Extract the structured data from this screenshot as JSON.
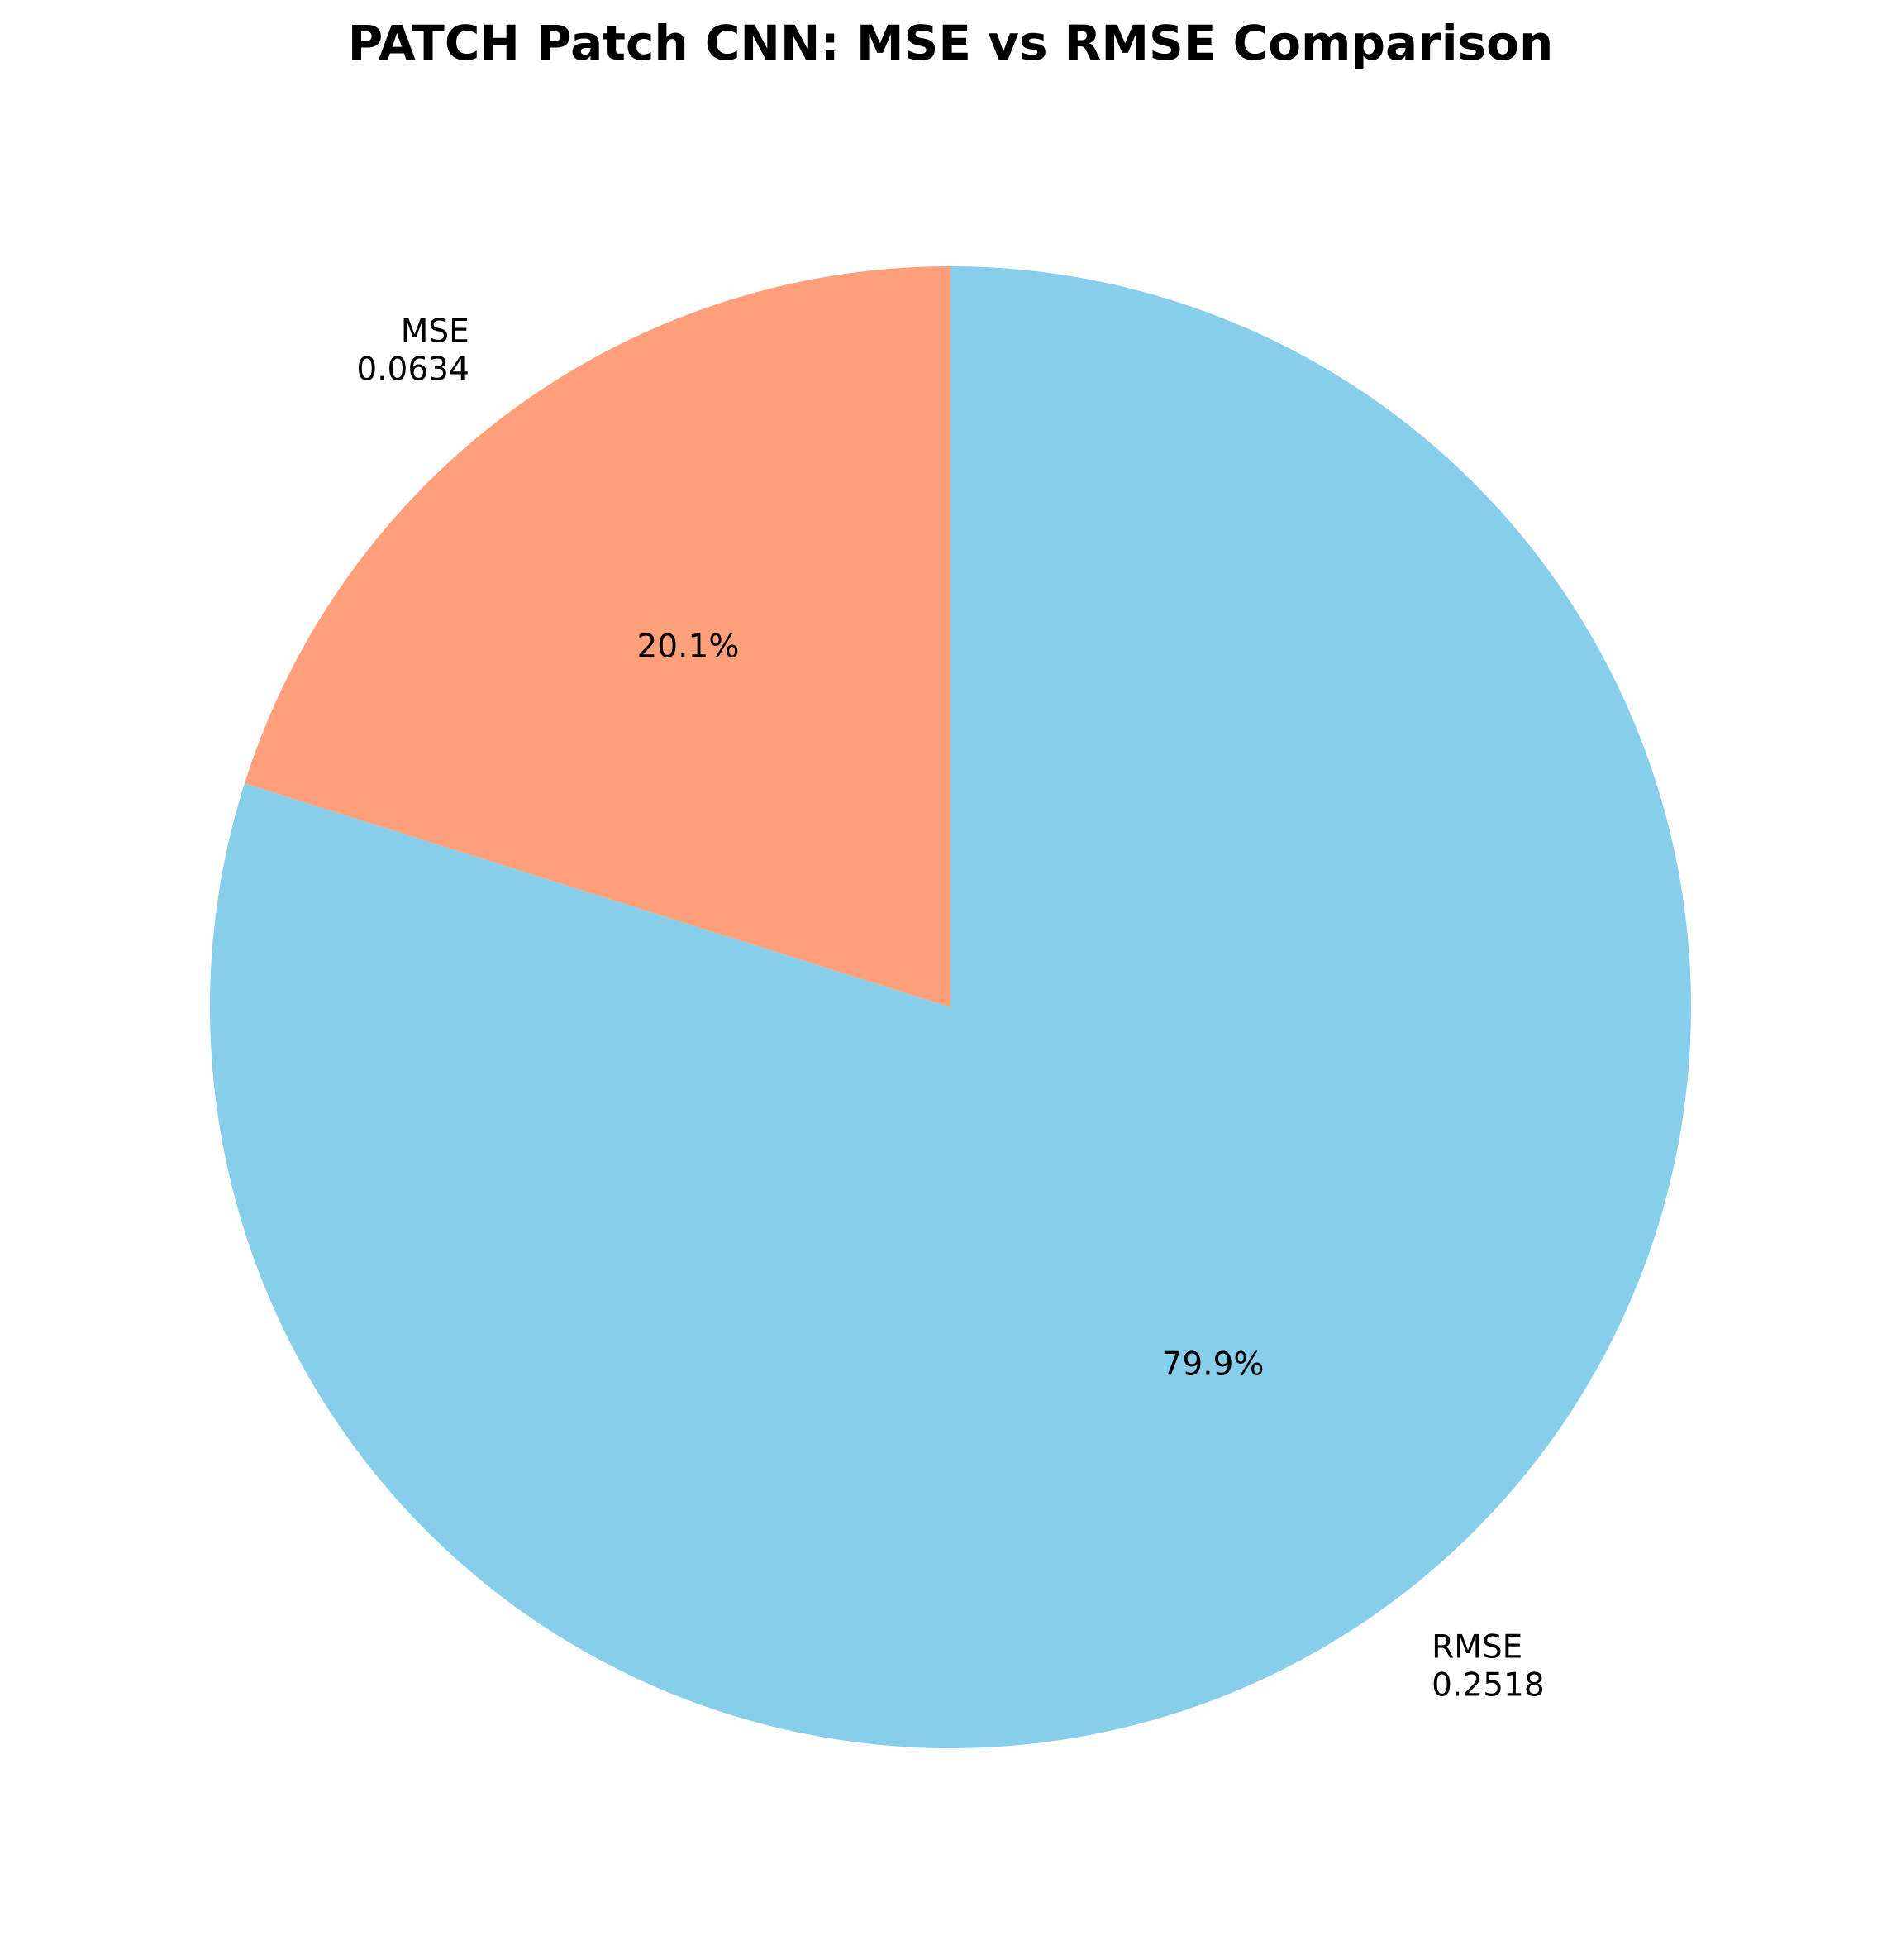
{
  "chart_data": {
    "type": "pie",
    "title": "PATCH Patch CNN: MSE vs RMSE Comparison",
    "start_angle_deg": 90,
    "direction": "counterclockwise",
    "slices": [
      {
        "name": "MSE",
        "value": 0.0634,
        "value_text": "0.0634",
        "percent_text": "20.1%",
        "color": "#FFA07A"
      },
      {
        "name": "RMSE",
        "value": 0.2518,
        "value_text": "0.2518",
        "percent_text": "79.9%",
        "color": "#87CEEB"
      }
    ]
  }
}
